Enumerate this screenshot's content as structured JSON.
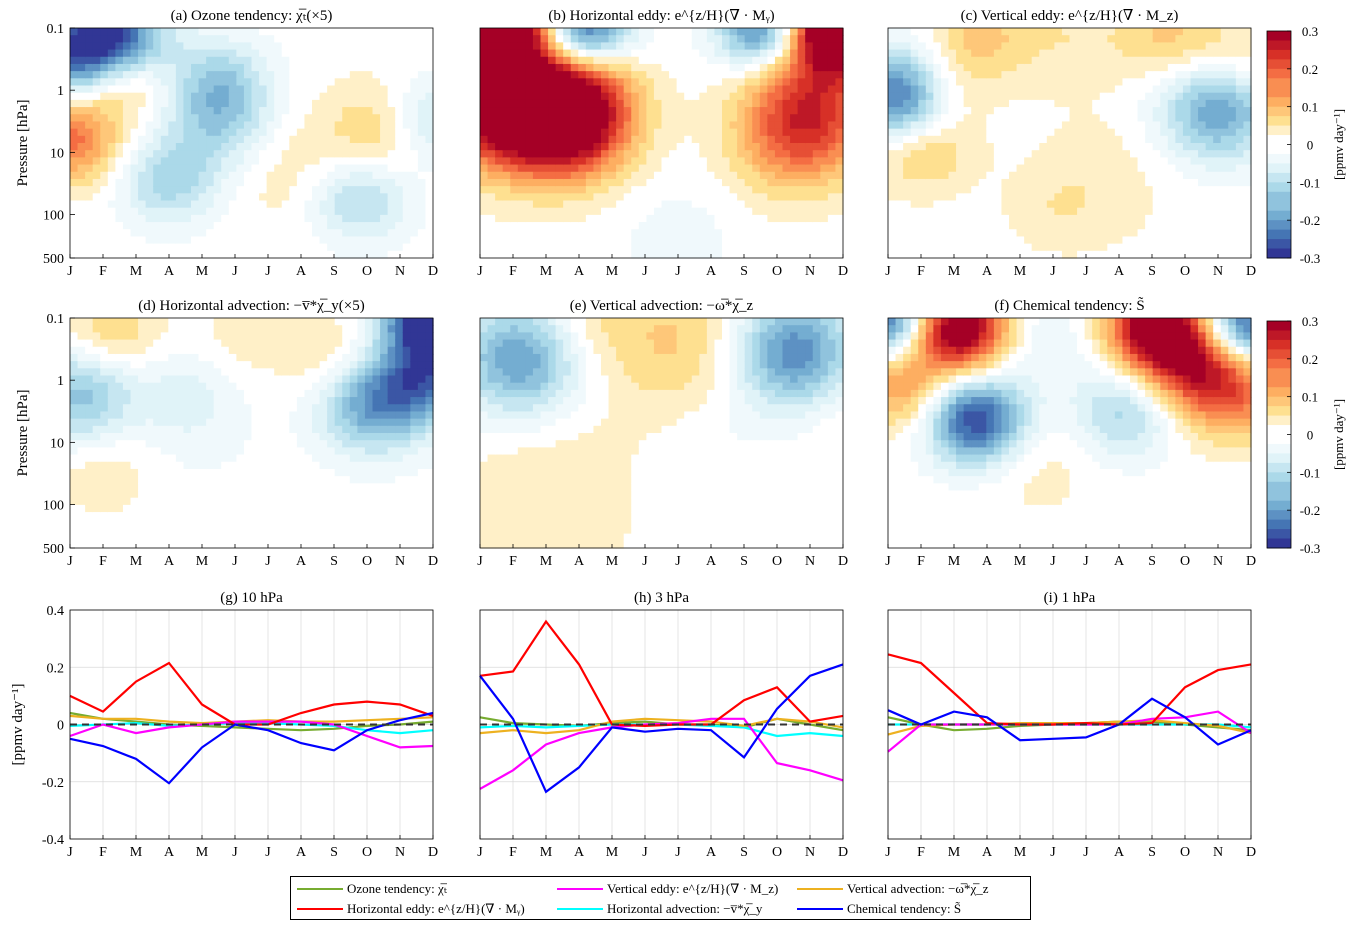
{
  "months": [
    "J",
    "F",
    "M",
    "A",
    "M",
    "J",
    "J",
    "A",
    "S",
    "O",
    "N",
    "D"
  ],
  "colorbar": {
    "label": "[ppmv day⁻¹]",
    "ticks": [
      "0.3",
      "0.2",
      "0.1",
      "0",
      "-0.1",
      "-0.2",
      "-0.3"
    ],
    "range": [
      -0.3,
      0.3
    ],
    "colors": [
      "#313695",
      "#4575b4",
      "#74add1",
      "#abd9e9",
      "#e0f3f8",
      "#ffffff",
      "#fee090",
      "#fdae61",
      "#f46d43",
      "#d73027",
      "#a50026"
    ]
  },
  "pressure_axis": {
    "label": "Pressure [hPa]",
    "ticks": [
      "0.1",
      "1",
      "10",
      "100",
      "500"
    ],
    "scale": "log"
  },
  "chart_data": [
    {
      "type": "heatmap",
      "id": "a",
      "title": "(a) Ozone tendency: χ̅ₜ(×5)",
      "features": [
        [
          0.3,
          0.3,
          0.12,
          -0.25
        ],
        [
          1.5,
          0.1,
          0.1,
          -0.2
        ],
        [
          4.5,
          0.6,
          0.1,
          -0.1
        ],
        [
          0,
          1.3,
          0.1,
          0.18
        ],
        [
          4.6,
          1.1,
          0.15,
          -0.12
        ],
        [
          9.6,
          1.2,
          0.15,
          0.1
        ],
        [
          8.8,
          2.0,
          0.1,
          -0.12
        ],
        [
          10.8,
          1.1,
          0.1,
          -0.12
        ],
        [
          1.5,
          0.6,
          0.05,
          0.12
        ],
        [
          3.0,
          1.8,
          0.1,
          -0.12
        ],
        [
          6.5,
          1.6,
          0.25,
          0.04
        ]
      ]
    },
    {
      "type": "heatmap",
      "id": "b",
      "title": "(b) Horizontal eddy: e^{z/H}(∇ · Mᵧ)",
      "features": [
        [
          2.6,
          1.0,
          0.22,
          0.45
        ],
        [
          0.5,
          0.9,
          0.25,
          0.3
        ],
        [
          1.0,
          0.0,
          0.08,
          0.35
        ],
        [
          3.0,
          0.02,
          0.08,
          -0.3
        ],
        [
          8.6,
          0.02,
          0.05,
          -0.25
        ],
        [
          10.8,
          0.0,
          0.1,
          0.45
        ],
        [
          10.2,
          0.9,
          0.25,
          0.18
        ],
        [
          9.4,
          1.3,
          0.2,
          0.12
        ],
        [
          6,
          2.5,
          0.2,
          -0.03
        ]
      ]
    },
    {
      "type": "heatmap",
      "id": "c",
      "title": "(c) Vertical eddy: e^{z/H}(∇ · M_z)",
      "features": [
        [
          0.4,
          0.8,
          0.12,
          -0.28
        ],
        [
          10.0,
          0.95,
          0.16,
          -0.2
        ],
        [
          1.0,
          1.4,
          0.1,
          0.1
        ],
        [
          1.5,
          0.7,
          0.08,
          0.08
        ],
        [
          5.5,
          0.1,
          0.2,
          0.04
        ],
        [
          8.5,
          0.1,
          0.1,
          0.08
        ],
        [
          2.8,
          0.1,
          0.1,
          0.08
        ],
        [
          10.5,
          0.4,
          0.08,
          0.07
        ],
        [
          6.5,
          1.8,
          0.3,
          0.03
        ],
        [
          5.0,
          2.1,
          0.1,
          0.03
        ]
      ]
    },
    {
      "type": "heatmap",
      "id": "d",
      "title": "(d) Horizontal advection: −v̅*χ̅_y(×5)",
      "features": [
        [
          0.3,
          0.9,
          0.15,
          -0.15
        ],
        [
          9.2,
          1.0,
          0.15,
          -0.2
        ],
        [
          11.0,
          0.0,
          0.06,
          -0.4
        ],
        [
          10.8,
          0.7,
          0.08,
          -0.2
        ],
        [
          1.2,
          0.2,
          0.08,
          0.08
        ],
        [
          3.5,
          0.9,
          0.1,
          -0.05
        ],
        [
          8.0,
          0.5,
          0.1,
          0.06
        ],
        [
          5.3,
          0.2,
          0.1,
          0.03
        ],
        [
          1,
          1.8,
          0.1,
          0.04
        ],
        [
          4,
          1.4,
          0.2,
          -0.02
        ]
      ]
    },
    {
      "type": "heatmap",
      "id": "e",
      "title": "(e) Vertical advection: −ω̅*χ̅_z",
      "features": [
        [
          1.2,
          0.5,
          0.2,
          -0.2
        ],
        [
          9.5,
          0.4,
          0.2,
          -0.22
        ],
        [
          6.0,
          0.3,
          0.35,
          0.08
        ],
        [
          3.3,
          0.1,
          0.1,
          0.04
        ],
        [
          2.0,
          2.1,
          0.5,
          0.04
        ],
        [
          7,
          1.3,
          0.2,
          -0.02
        ],
        [
          11.5,
          1.2,
          0.15,
          0.03
        ]
      ]
    },
    {
      "type": "heatmap",
      "id": "f",
      "title": "(f) Chemical tendency: S̃",
      "features": [
        [
          2.0,
          0.1,
          0.12,
          0.4
        ],
        [
          2.6,
          1.2,
          0.1,
          -0.3
        ],
        [
          8.2,
          0.1,
          0.1,
          0.35
        ],
        [
          9.2,
          0.5,
          0.12,
          0.18
        ],
        [
          10.4,
          0.8,
          0.15,
          0.2
        ],
        [
          0.3,
          0.8,
          0.05,
          0.12
        ],
        [
          0.2,
          0.0,
          0.08,
          -0.3
        ],
        [
          10.8,
          0.1,
          0.1,
          -0.3
        ],
        [
          7.2,
          1.1,
          0.12,
          -0.12
        ],
        [
          4.5,
          0.2,
          0.2,
          -0.05
        ],
        [
          1.2,
          1.2,
          0.06,
          0.04
        ],
        [
          4.5,
          1.7,
          0.2,
          0.03
        ]
      ]
    },
    {
      "type": "line",
      "id": "g",
      "title": "(g) 10 hPa",
      "ylabel": "[ppmv day⁻¹]",
      "ylim": [
        -0.4,
        0.4
      ],
      "yticks": [
        "0.4",
        "0.2",
        "0",
        "-0.2",
        "-0.4"
      ],
      "series": [
        {
          "name": "ozone",
          "color": "#77ac30",
          "values": [
            0.04,
            0.02,
            0.01,
            0.0,
            -0.005,
            -0.01,
            -0.015,
            -0.02,
            -0.015,
            -0.005,
            0.0,
            0.01
          ]
        },
        {
          "name": "hadv",
          "color": "#00ffff",
          "values": [
            -0.005,
            0.0,
            0.005,
            -0.005,
            0.0,
            0.005,
            0.005,
            0.0,
            -0.005,
            -0.02,
            -0.03,
            -0.02
          ]
        },
        {
          "name": "vadv",
          "color": "#edb120",
          "values": [
            0.03,
            0.02,
            0.02,
            0.01,
            0.005,
            0.01,
            0.015,
            0.01,
            0.01,
            0.015,
            0.02,
            0.025
          ]
        },
        {
          "name": "veddy",
          "color": "#ff00ff",
          "values": [
            -0.04,
            0.0,
            -0.03,
            -0.01,
            0.0,
            0.01,
            0.01,
            0.01,
            0.0,
            -0.04,
            -0.08,
            -0.075
          ]
        },
        {
          "name": "heddy",
          "color": "#ff0000",
          "values": [
            0.1,
            0.045,
            0.15,
            0.215,
            0.07,
            0.0,
            0.0,
            0.04,
            0.07,
            0.08,
            0.07,
            0.03
          ]
        },
        {
          "name": "chem",
          "color": "#0000ff",
          "values": [
            -0.05,
            -0.075,
            -0.12,
            -0.205,
            -0.08,
            0.0,
            -0.02,
            -0.065,
            -0.09,
            -0.02,
            0.015,
            0.04
          ]
        }
      ]
    },
    {
      "type": "line",
      "id": "h",
      "title": "(h) 3 hPa",
      "ylim": [
        -0.4,
        0.4
      ],
      "series": [
        {
          "name": "ozone",
          "color": "#77ac30",
          "values": [
            0.025,
            0.005,
            0.0,
            -0.005,
            0.005,
            0.01,
            0.0,
            0.0,
            -0.01,
            0.02,
            0.0,
            -0.02
          ]
        },
        {
          "name": "hadv",
          "color": "#00ffff",
          "values": [
            -0.01,
            -0.005,
            -0.01,
            -0.005,
            0.0,
            0.0,
            0.0,
            -0.005,
            -0.01,
            -0.04,
            -0.03,
            -0.04
          ]
        },
        {
          "name": "vadv",
          "color": "#edb120",
          "values": [
            -0.03,
            -0.02,
            -0.03,
            -0.02,
            0.01,
            0.02,
            0.015,
            0.01,
            -0.005,
            0.02,
            0.01,
            -0.01
          ]
        },
        {
          "name": "veddy",
          "color": "#ff00ff",
          "values": [
            -0.225,
            -0.16,
            -0.07,
            -0.03,
            -0.01,
            0.0,
            0.005,
            0.02,
            0.02,
            -0.135,
            -0.16,
            -0.195
          ]
        },
        {
          "name": "heddy",
          "color": "#ff0000",
          "values": [
            0.17,
            0.185,
            0.36,
            0.21,
            0.0,
            -0.005,
            0.0,
            0.0,
            0.085,
            0.13,
            0.01,
            0.03
          ]
        },
        {
          "name": "chem",
          "color": "#0000ff",
          "values": [
            0.17,
            0.02,
            -0.235,
            -0.15,
            -0.01,
            -0.025,
            -0.015,
            -0.02,
            -0.115,
            0.055,
            0.17,
            0.21
          ]
        }
      ]
    },
    {
      "type": "line",
      "id": "i",
      "title": "(i) 1 hPa",
      "ylim": [
        -0.4,
        0.4
      ],
      "series": [
        {
          "name": "ozone",
          "color": "#77ac30",
          "values": [
            0.025,
            0.0,
            -0.02,
            -0.015,
            -0.005,
            0.0,
            0.005,
            0.01,
            0.01,
            0.0,
            -0.01,
            -0.02
          ]
        },
        {
          "name": "hadv",
          "color": "#00ffff",
          "values": [
            0.0,
            0.0,
            0.0,
            0.0,
            0.0,
            0.0,
            0.0,
            0.0,
            0.0,
            0.0,
            0.0,
            -0.01
          ]
        },
        {
          "name": "vadv",
          "color": "#edb120",
          "values": [
            -0.035,
            -0.005,
            0.0,
            0.0,
            0.005,
            0.005,
            0.005,
            0.01,
            0.015,
            0.005,
            -0.005,
            -0.03
          ]
        },
        {
          "name": "veddy",
          "color": "#ff00ff",
          "values": [
            -0.095,
            0.0,
            0.0,
            0.0,
            0.0,
            0.0,
            0.0,
            0.0,
            0.02,
            0.025,
            0.045,
            -0.03
          ]
        },
        {
          "name": "heddy",
          "color": "#ff0000",
          "values": [
            0.245,
            0.215,
            0.11,
            0.005,
            0.0,
            0.0,
            0.005,
            0.0,
            0.005,
            0.13,
            0.19,
            0.21
          ]
        },
        {
          "name": "chem",
          "color": "#0000ff",
          "values": [
            0.05,
            0.0,
            0.045,
            0.025,
            -0.055,
            -0.05,
            -0.045,
            0.0,
            0.09,
            0.025,
            -0.07,
            -0.02
          ]
        }
      ]
    }
  ],
  "legend": [
    {
      "key": "ozone",
      "label": "Ozone tendency: χ̅ₜ",
      "color": "#77ac30"
    },
    {
      "key": "veddy",
      "label": "Vertical eddy: e^{z/H}(∇ · M_z)",
      "color": "#ff00ff"
    },
    {
      "key": "vadv",
      "label": "Vertical advection: −ω̅*χ̅_z",
      "color": "#edb120"
    },
    {
      "key": "heddy",
      "label": "Horizontal eddy: e^{z/H}(∇ · Mᵧ)",
      "color": "#ff0000"
    },
    {
      "key": "hadv",
      "label": "Horizontal advection: −v̅*χ̅_y",
      "color": "#00ffff"
    },
    {
      "key": "chem",
      "label": "Chemical tendency: S̃",
      "color": "#0000ff"
    }
  ]
}
